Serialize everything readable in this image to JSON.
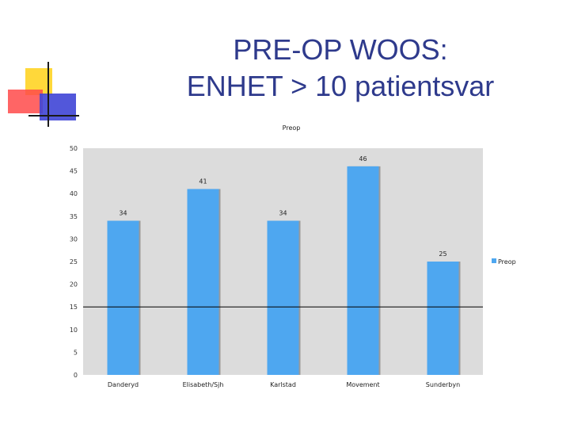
{
  "slide": {
    "title_line1": "PRE-OP WOOS:",
    "title_line2": "ENHET > 10 patientsvar"
  },
  "colors": {
    "title": "#2e3a8c",
    "bar": "#4ea7f0",
    "plot_bg": "#dcdcdc",
    "reference_line": "#000000",
    "deco_yellow": "#ffd83a",
    "deco_red": "#ff4a4a",
    "deco_blue": "#3f45d6"
  },
  "chart_data": {
    "type": "bar",
    "title": "Preop",
    "categories": [
      "Danderyd",
      "Elisabeth/Sjh",
      "Karlstad",
      "Movement",
      "Sunderbyn"
    ],
    "series": [
      {
        "name": "Preop",
        "values": [
          34,
          41,
          34,
          46,
          25
        ],
        "labels": [
          "34",
          "41",
          "34",
          "46",
          "25"
        ]
      }
    ],
    "ylim": [
      0,
      50
    ],
    "yticks": [
      "0",
      "5",
      "10",
      "15",
      "20",
      "25",
      "30",
      "35",
      "40",
      "45",
      "50"
    ],
    "reference_line": 15,
    "legend_position": "right",
    "grid": false
  }
}
